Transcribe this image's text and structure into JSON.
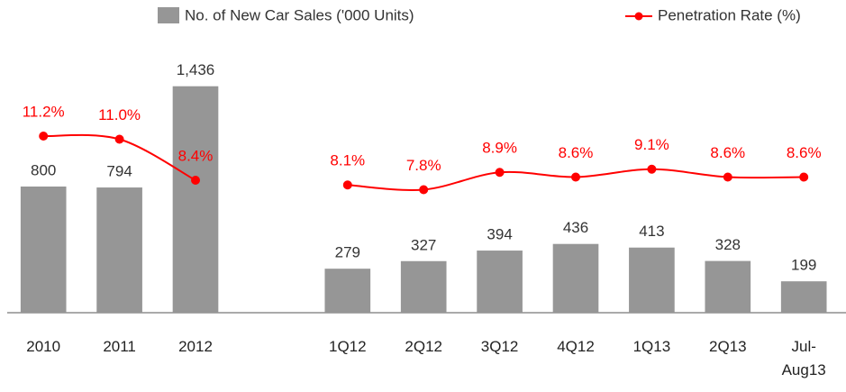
{
  "chart_data": {
    "type": "bar_line",
    "categories": [
      "2010",
      "2011",
      "2012",
      null,
      "1Q12",
      "2Q12",
      "3Q12",
      "4Q12",
      "1Q13",
      "2Q13",
      "Jul-Aug13"
    ],
    "series": [
      {
        "name": "No. of New Car Sales ('000 Units)",
        "type": "bar",
        "color": "#969696",
        "axis": "y",
        "values": [
          800,
          794,
          1436,
          null,
          279,
          327,
          394,
          436,
          413,
          328,
          199
        ],
        "value_labels": [
          "800",
          "794",
          "1,436",
          null,
          "279",
          "327",
          "394",
          "436",
          "413",
          "328",
          "199"
        ]
      },
      {
        "name": "Penetration Rate (%)",
        "type": "line",
        "color": "#ff0000",
        "axis": "y2",
        "values": [
          11.2,
          11.0,
          8.4,
          null,
          8.1,
          7.8,
          8.9,
          8.6,
          9.1,
          8.6,
          8.6
        ],
        "value_labels": [
          "11.2%",
          "11.0%",
          "8.4%",
          null,
          "8.1%",
          "7.8%",
          "8.9%",
          "8.6%",
          "9.1%",
          "8.6%",
          "8.6%"
        ]
      }
    ],
    "ylim": [
      0,
      1600
    ],
    "y2lim": [
      0,
      16
    ],
    "legend": "top"
  }
}
